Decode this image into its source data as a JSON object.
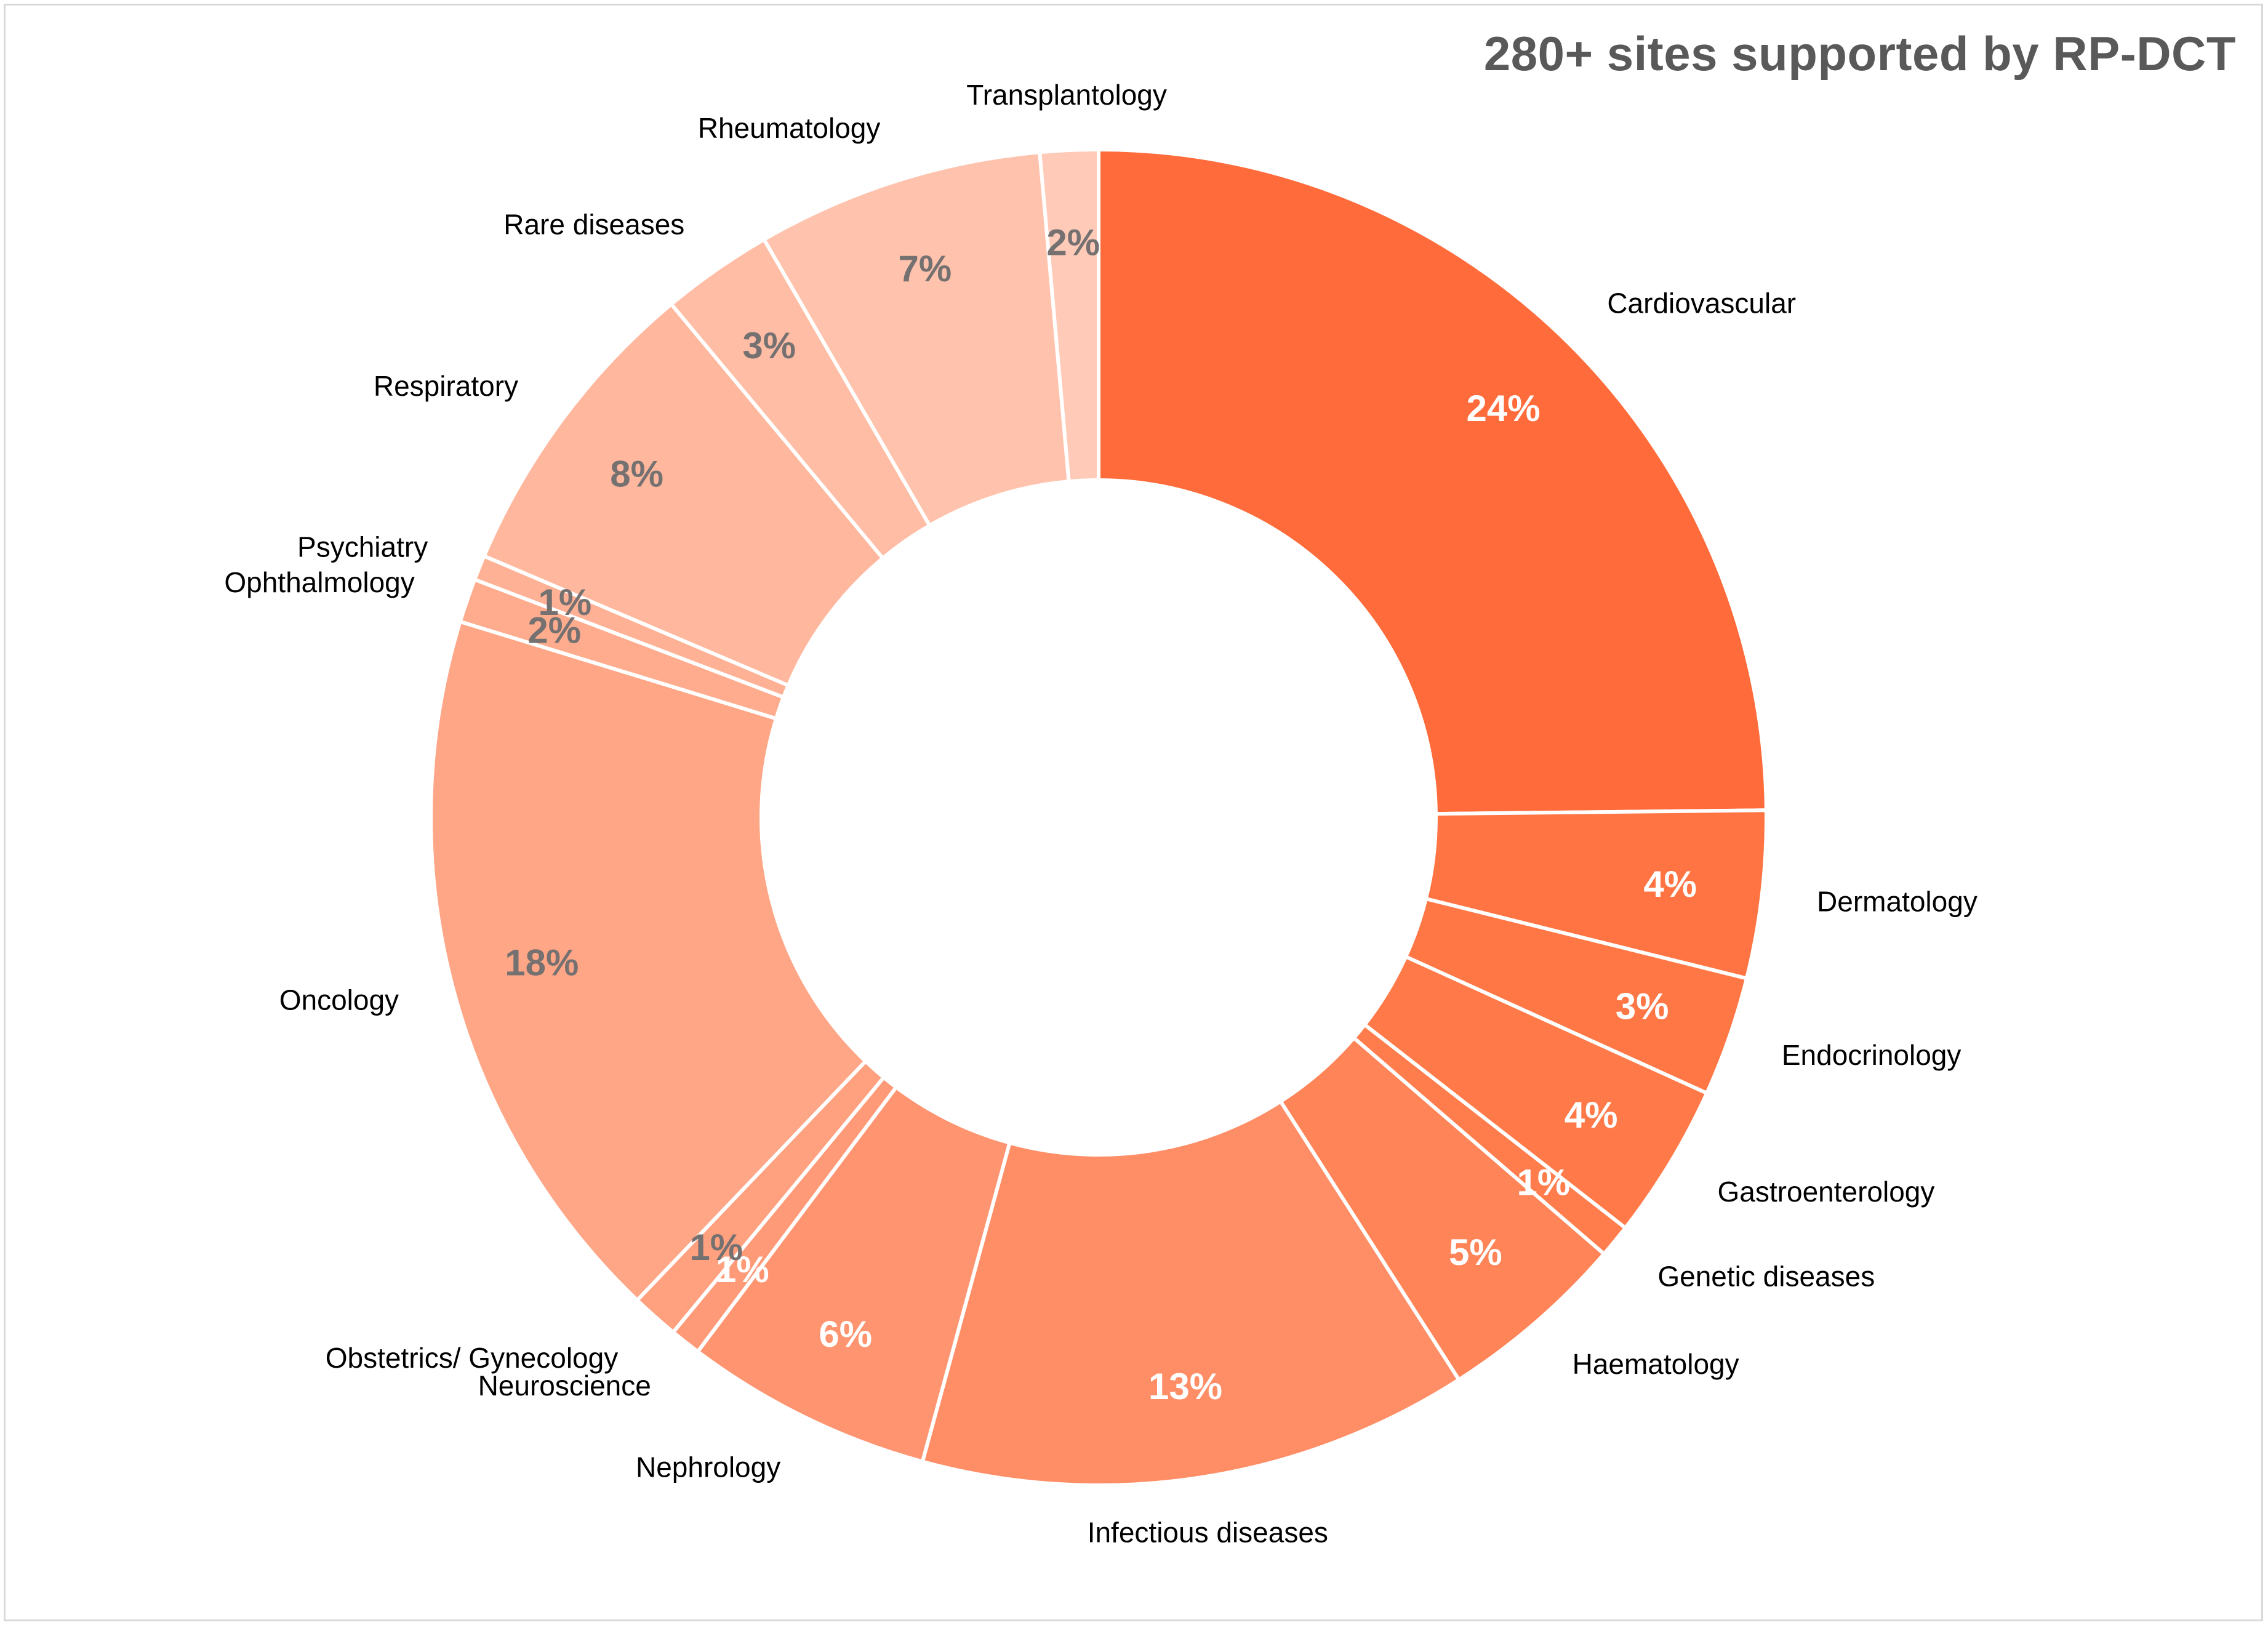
{
  "chart_data": {
    "type": "pie",
    "title": "280+ sites supported by RP-DCT",
    "donut": true,
    "start": "12 o'clock, clockwise",
    "slices": [
      {
        "label": "Cardiovascular",
        "value": 24,
        "display": "24%",
        "color": "#ff6b3a",
        "text_color": "#ffffff"
      },
      {
        "label": "Dermatology",
        "value": 4,
        "display": "4%",
        "color": "#ff7442",
        "text_color": "#ffffff"
      },
      {
        "label": "Endocrinology",
        "value": 3,
        "display": "3%",
        "color": "#ff7745",
        "text_color": "#ffffff"
      },
      {
        "label": "Gastroenterology",
        "value": 4,
        "display": "4%",
        "color": "#ff7a48",
        "text_color": "#ffffff"
      },
      {
        "label": "Genetic diseases",
        "value": 1,
        "display": "1%",
        "color": "#ff7d4c",
        "text_color": "#ffffff"
      },
      {
        "label": "Haematology",
        "value": 5,
        "display": "5%",
        "color": "#ff8458",
        "text_color": "#ffffff"
      },
      {
        "label": "Infectious diseases",
        "value": 13,
        "display": "13%",
        "color": "#ff8e66",
        "text_color": "#ffffff"
      },
      {
        "label": "Nephrology",
        "value": 6,
        "display": "6%",
        "color": "#ff9470",
        "text_color": "#ffffff"
      },
      {
        "label": "Neuroscience",
        "value": 1,
        "display": "1%",
        "color": "#ff9a78",
        "text_color": "#ffffff"
      },
      {
        "label": "Obstetrics/ Gynecology",
        "value": 1,
        "display": "1%",
        "color": "#ffa07f",
        "text_color": "#767171"
      },
      {
        "label": "Oncology",
        "value": 18,
        "display": "18%",
        "color": "#ffa686",
        "text_color": "#767171"
      },
      {
        "label": "Ophthalmology",
        "value": 2,
        "display": "2%",
        "color": "#ffac8e",
        "text_color": "#767171"
      },
      {
        "label": "Psychiatry",
        "value": 1,
        "display": "1%",
        "color": "#ffb195",
        "text_color": "#767171"
      },
      {
        "label": "Respiratory",
        "value": 8,
        "display": "8%",
        "color": "#ffb79d",
        "text_color": "#767171"
      },
      {
        "label": "Rare diseases",
        "value": 3,
        "display": "3%",
        "color": "#ffbda5",
        "text_color": "#767171"
      },
      {
        "label": "Rheumatology",
        "value": 7,
        "display": "7%",
        "color": "#ffc3ad",
        "text_color": "#767171"
      },
      {
        "label": "Transplantology",
        "value": 2,
        "display": "2%",
        "color": "#ffcab7",
        "text_color": "#767171"
      }
    ],
    "legend": "none",
    "labels": "outside category names, inside percentages"
  }
}
